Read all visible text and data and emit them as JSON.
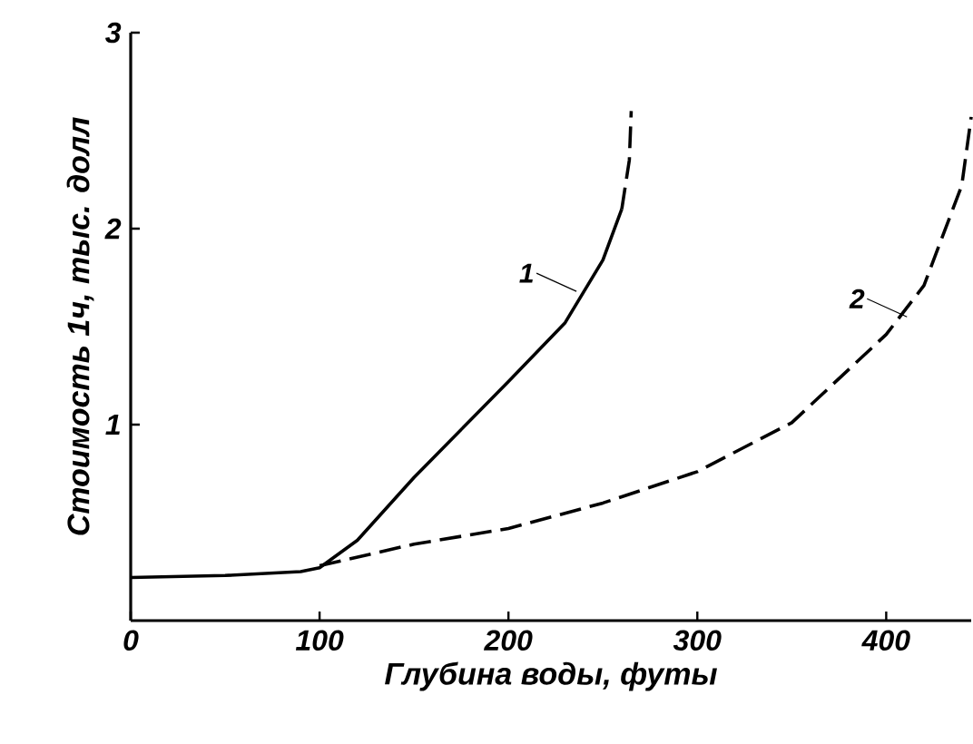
{
  "chart_data": {
    "type": "line",
    "xlabel": "Глубина воды, футы",
    "ylabel": "Стоимость 1ч, тыс. долл",
    "xlim": [
      0,
      445
    ],
    "ylim": [
      0,
      3
    ],
    "xticks": [
      0,
      100,
      200,
      300,
      400
    ],
    "yticks": [
      1,
      2,
      3
    ],
    "series": [
      {
        "color": "#000000",
        "line_style": "solid",
        "x": [
          0,
          50,
          90,
          100,
          120,
          150,
          200,
          230,
          250,
          260
        ],
        "values": [
          0.22,
          0.23,
          0.25,
          0.27,
          0.41,
          0.73,
          1.22,
          1.52,
          1.84,
          2.1
        ]
      },
      {
        "color": "#000000",
        "line_style": "dashed",
        "x": [
          260,
          264,
          265
        ],
        "values": [
          2.1,
          2.35,
          2.6
        ]
      },
      {
        "color": "#000000",
        "line_style": "dashed",
        "x": [
          100,
          150,
          200,
          250,
          300,
          350,
          400,
          420,
          440,
          445
        ],
        "values": [
          0.28,
          0.39,
          0.47,
          0.6,
          0.76,
          1.01,
          1.46,
          1.71,
          2.22,
          2.57
        ]
      }
    ],
    "annotations": [
      {
        "text": "1",
        "x": 236,
        "y": 1.68
      },
      {
        "text": "2",
        "x": 411,
        "y": 1.55
      }
    ]
  }
}
